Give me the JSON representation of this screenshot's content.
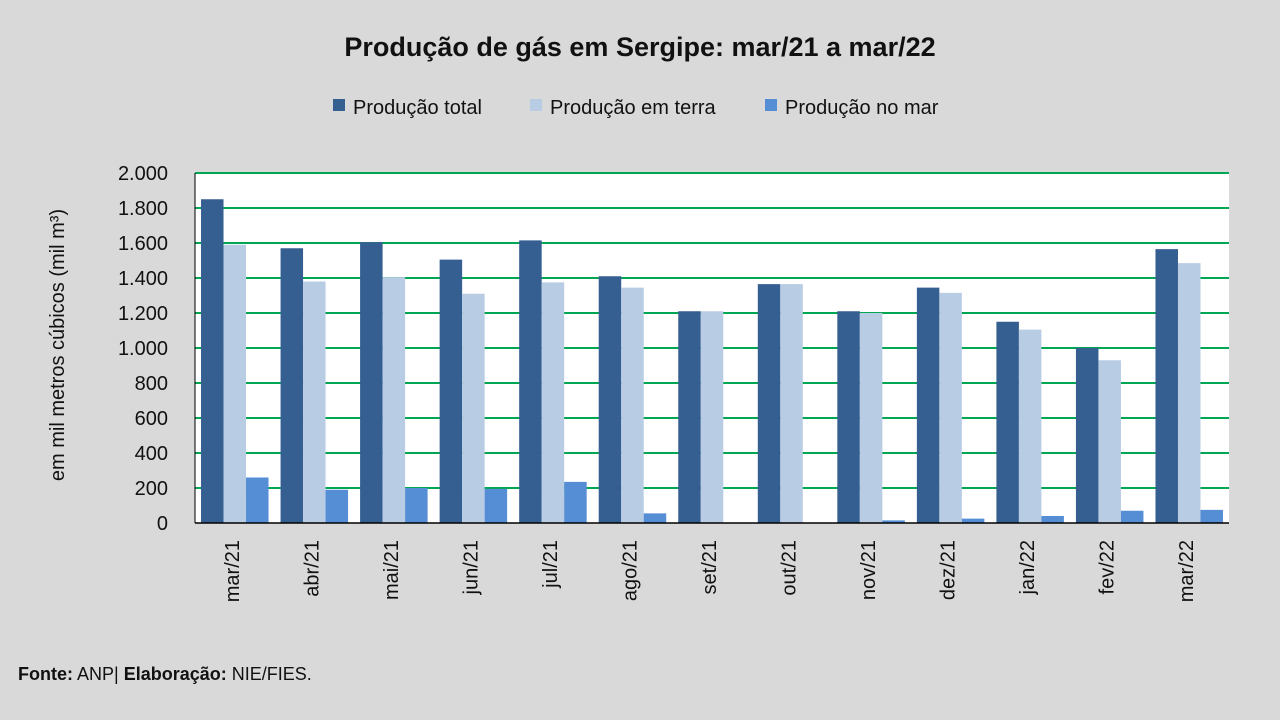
{
  "chart_data": {
    "type": "bar",
    "title": "Produção de gás em Sergipe:  mar/21 a mar/22",
    "xlabel": "",
    "ylabel": "em mil metros cúbicos (mil m³)",
    "ylim": [
      0,
      2000
    ],
    "yticks": [
      0,
      200,
      400,
      600,
      800,
      1000,
      1200,
      1400,
      1600,
      1800,
      2000
    ],
    "ytick_labels": [
      "0",
      "200",
      "400",
      "600",
      "800",
      "1.000",
      "1.200",
      "1.400",
      "1.600",
      "1.800",
      "2.000"
    ],
    "grid": true,
    "legend_position": "top-center",
    "categories": [
      "mar/21",
      "abr/21",
      "mai/21",
      "jun/21",
      "jul/21",
      "ago/21",
      "set/21",
      "out/21",
      "nov/21",
      "dez/21",
      "jan/22",
      "fev/22",
      "mar/22"
    ],
    "series": [
      {
        "name": "Produção total",
        "color": "#365f91",
        "values": [
          1850,
          1570,
          1605,
          1505,
          1615,
          1410,
          1210,
          1365,
          1210,
          1345,
          1150,
          1000,
          1565
        ]
      },
      {
        "name": "Produção em terra",
        "color": "#b8cce4",
        "values": [
          1590,
          1380,
          1405,
          1310,
          1375,
          1345,
          1210,
          1365,
          1200,
          1315,
          1105,
          930,
          1485
        ]
      },
      {
        "name": "Produção no mar",
        "color": "#558ed5",
        "values": [
          260,
          190,
          200,
          195,
          235,
          55,
          0,
          0,
          15,
          25,
          40,
          70,
          75
        ]
      }
    ],
    "colors": {
      "plot_background": "#ffffff",
      "gridline": "#00a651"
    }
  },
  "footer": {
    "source_label": "Fonte:",
    "source_value": " ANP|",
    "credit_label": "Elaboração:",
    "credit_value": " NIE/FIES."
  }
}
